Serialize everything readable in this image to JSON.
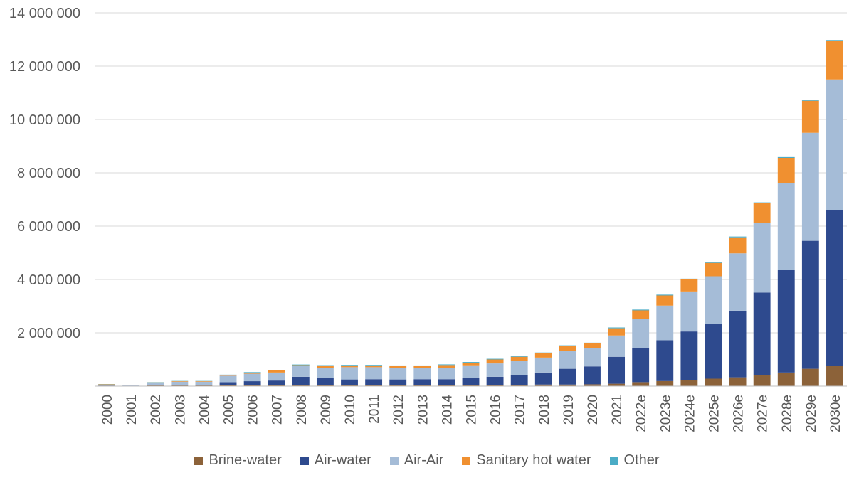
{
  "chart_data": {
    "type": "bar",
    "stacked": true,
    "title": "",
    "xlabel": "",
    "ylabel": "",
    "ylim": [
      0,
      14000000
    ],
    "y_ticks": [
      0,
      2000000,
      4000000,
      6000000,
      8000000,
      10000000,
      12000000,
      14000000
    ],
    "y_tick_labels": [
      "",
      "2 000 000",
      "4 000 000",
      "6 000 000",
      "8 000 000",
      "10 000 000",
      "12 000 000",
      "14 000 000"
    ],
    "grid": true,
    "legend_position": "bottom",
    "categories": [
      "2000",
      "2001",
      "2002",
      "2003",
      "2004",
      "2005",
      "2006",
      "2007",
      "2008",
      "2009",
      "2010",
      "2011",
      "2012",
      "2013",
      "2014",
      "2015",
      "2016",
      "2017",
      "2018",
      "2019",
      "2020",
      "2021",
      "2022e",
      "2023e",
      "2024e",
      "2025e",
      "2026e",
      "2027e",
      "2028e",
      "2029e",
      "2030e"
    ],
    "series": [
      {
        "name": "Brine-water",
        "color": "#8c6239",
        "values": [
          20000,
          15000,
          25000,
          25000,
          25000,
          30000,
          35000,
          40000,
          50000,
          50000,
          50000,
          50000,
          50000,
          50000,
          50000,
          50000,
          50000,
          50000,
          60000,
          60000,
          70000,
          90000,
          150000,
          190000,
          230000,
          280000,
          330000,
          410000,
          510000,
          650000,
          750000
        ]
      },
      {
        "name": "Air-water",
        "color": "#2e4a8e",
        "values": [
          5000,
          3000,
          20000,
          20000,
          20000,
          120000,
          150000,
          170000,
          300000,
          260000,
          200000,
          210000,
          200000,
          210000,
          210000,
          250000,
          300000,
          350000,
          450000,
          590000,
          670000,
          1010000,
          1270000,
          1530000,
          1820000,
          2040000,
          2500000,
          3100000,
          3850000,
          4800000,
          5850000
        ]
      },
      {
        "name": "Air-Air",
        "color": "#a5bcd7",
        "values": [
          30000,
          10000,
          70000,
          120000,
          120000,
          240000,
          280000,
          300000,
          420000,
          380000,
          460000,
          450000,
          440000,
          420000,
          430000,
          480000,
          500000,
          550000,
          560000,
          680000,
          680000,
          800000,
          1100000,
          1300000,
          1500000,
          1800000,
          2150000,
          2600000,
          3250000,
          4050000,
          4900000
        ]
      },
      {
        "name": "Sanitary hot water",
        "color": "#f09030",
        "values": [
          15000,
          20000,
          25000,
          20000,
          20000,
          20000,
          40000,
          80000,
          15000,
          70000,
          60000,
          60000,
          60000,
          70000,
          100000,
          100000,
          150000,
          150000,
          160000,
          170000,
          180000,
          270000,
          320000,
          380000,
          450000,
          500000,
          600000,
          750000,
          950000,
          1200000,
          1450000
        ]
      },
      {
        "name": "Other",
        "color": "#4bacc6",
        "values": [
          10000,
          5000,
          10000,
          10000,
          10000,
          20000,
          20000,
          20000,
          25000,
          25000,
          25000,
          25000,
          25000,
          25000,
          25000,
          25000,
          25000,
          25000,
          30000,
          30000,
          30000,
          30000,
          30000,
          30000,
          30000,
          30000,
          30000,
          30000,
          30000,
          30000,
          30000
        ]
      }
    ]
  }
}
